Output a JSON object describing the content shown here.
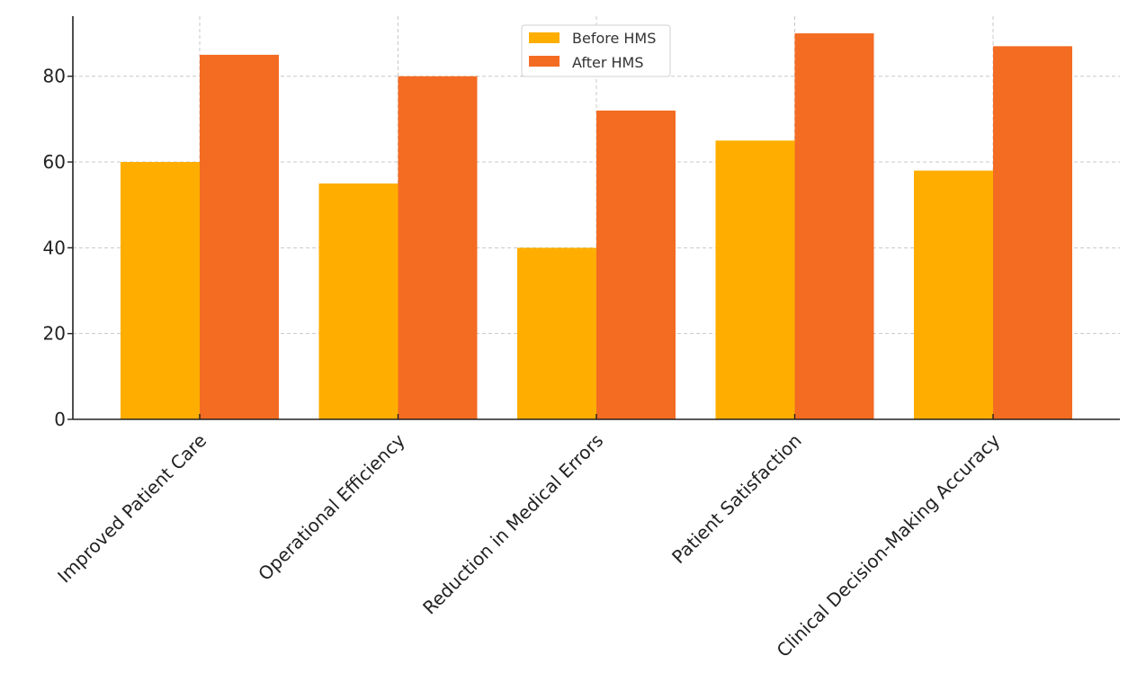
{
  "chart_data": {
    "type": "bar",
    "title": "",
    "xlabel": "",
    "ylabel": "",
    "categories": [
      "Improved Patient Care",
      "Operational Efficiency",
      "Reduction in Medical Errors",
      "Patient Satisfaction",
      "Clinical Decision-Making Accuracy"
    ],
    "series": [
      {
        "name": "Before HMS",
        "color": "#FFAE00",
        "values": [
          60,
          55,
          40,
          65,
          58
        ]
      },
      {
        "name": "After HMS",
        "color": "#F46B22",
        "values": [
          85,
          80,
          72,
          90,
          87
        ]
      }
    ],
    "ylim": [
      0,
      94
    ],
    "yticks": [
      0,
      20,
      40,
      60,
      80
    ],
    "grid": true,
    "legend": "top-center"
  }
}
